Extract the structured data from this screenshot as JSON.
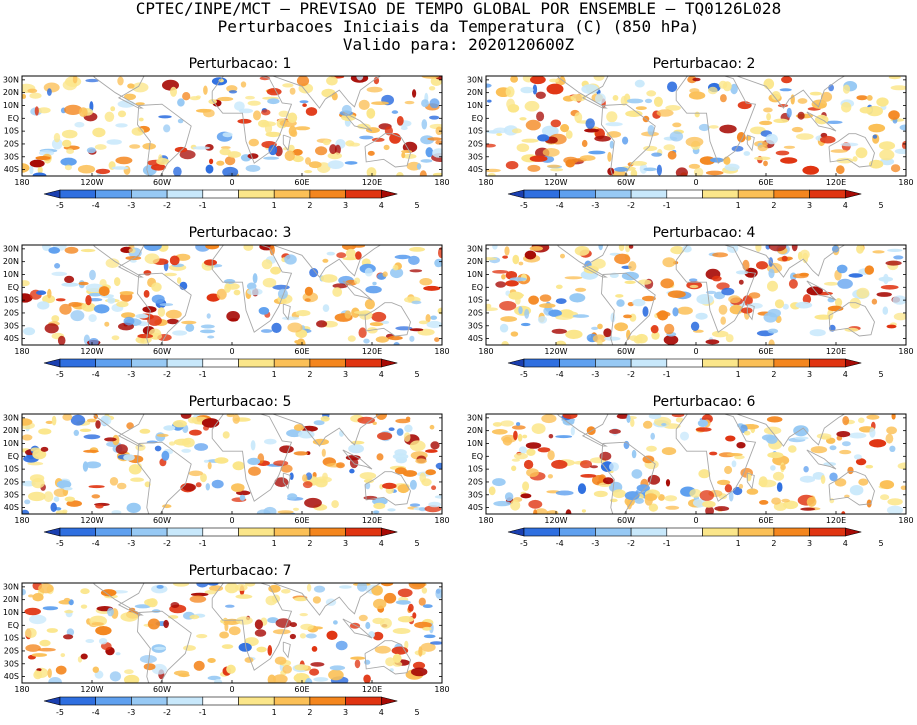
{
  "header": {
    "line1": "CPTEC/INPE/MCT – PREVISAO DE TEMPO GLOBAL POR ENSEMBLE – TQ0126L028",
    "line2": "Perturbacoes Iniciais da Temperatura (C) (850 hPa)",
    "line3": "Valido para: 2020120600Z"
  },
  "panels": [
    {
      "title": "Perturbacao: 1"
    },
    {
      "title": "Perturbacao: 2"
    },
    {
      "title": "Perturbacao: 3"
    },
    {
      "title": "Perturbacao: 4"
    },
    {
      "title": "Perturbacao: 5"
    },
    {
      "title": "Perturbacao: 6"
    },
    {
      "title": "Perturbacao: 7"
    }
  ],
  "map_axes": {
    "lat_labels": [
      "30N",
      "20N",
      "10N",
      "EQ",
      "10S",
      "20S",
      "30S",
      "40S"
    ],
    "lat_values": [
      30,
      20,
      10,
      0,
      -10,
      -20,
      -30,
      -40
    ],
    "lon_labels": [
      "180",
      "120W",
      "60W",
      "0",
      "60E",
      "120E",
      "180"
    ],
    "lon_values": [
      -180,
      -120,
      -60,
      0,
      60,
      120,
      180
    ],
    "lat_range": [
      -45,
      33
    ]
  },
  "colorbar": {
    "labels": [
      "-5",
      "-4",
      "-3",
      "-2",
      "-1",
      "1",
      "2",
      "3",
      "4",
      "5"
    ],
    "colors": [
      "#1a3fb0",
      "#2f6fe0",
      "#5fa0ef",
      "#97c9f4",
      "#c8e8fb",
      "#ffffff",
      "#fbe68a",
      "#fbc057",
      "#f4861e",
      "#e03411",
      "#a70a05"
    ]
  }
}
